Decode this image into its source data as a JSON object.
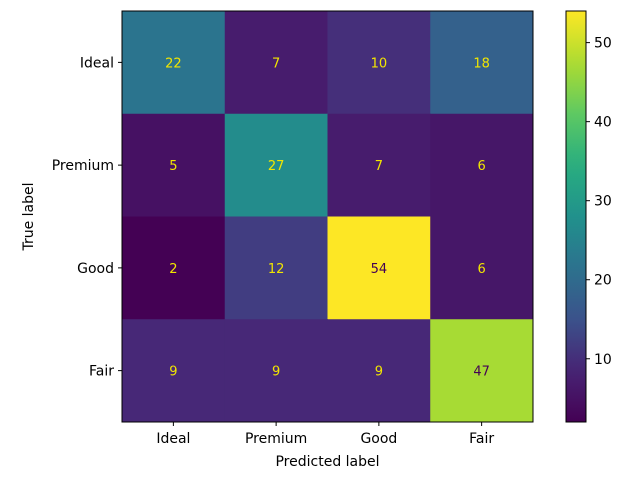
{
  "chart_data": {
    "type": "heatmap",
    "title": "",
    "xlabel": "Predicted label",
    "ylabel": "True label",
    "x_categories": [
      "Ideal",
      "Premium",
      "Good",
      "Fair"
    ],
    "y_categories": [
      "Ideal",
      "Premium",
      "Good",
      "Fair"
    ],
    "values": [
      [
        22,
        7,
        10,
        18
      ],
      [
        5,
        27,
        7,
        6
      ],
      [
        2,
        12,
        54,
        6
      ],
      [
        9,
        9,
        9,
        47
      ]
    ],
    "colormap": "viridis",
    "value_range": [
      2,
      54
    ],
    "colorbar": {
      "ticks": [
        10,
        20,
        30,
        40,
        50
      ],
      "tick_labels": [
        "10",
        "20",
        "30",
        "40",
        "50"
      ]
    },
    "grid": false,
    "legend": "colorbar-right",
    "colors": {
      "text_on_dark": "#f2e600",
      "text_on_light": "#440154"
    }
  }
}
